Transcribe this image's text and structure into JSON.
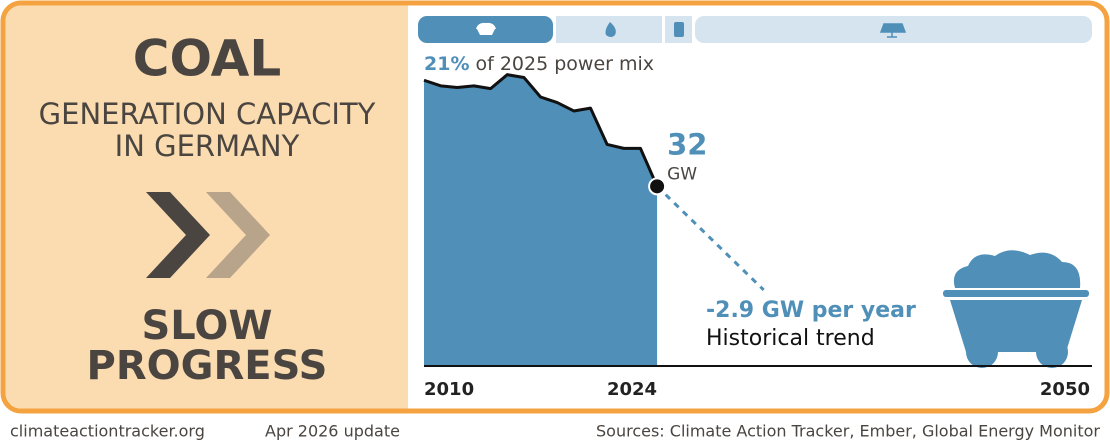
{
  "panel": {
    "title": "COAL",
    "subtitle_lines": [
      "GENERATION CAPACITY",
      "IN GERMANY"
    ],
    "status_lines": [
      "SLOW",
      "PROGRESS"
    ]
  },
  "footer": {
    "site": "climateactiontracker.org",
    "update": "Apr 2026 update",
    "sources": "Sources: Climate Action Tracker, Ember, Global Energy Monitor"
  },
  "chart_data": {
    "type": "area",
    "share": {
      "value": 21,
      "label": "21%"
    },
    "share_text": "of 2025 power mix",
    "x": [
      2010,
      2011,
      2012,
      2013,
      2014,
      2015,
      2016,
      2017,
      2018,
      2019,
      2020,
      2021,
      2022,
      2023,
      2024
    ],
    "values": [
      51,
      50,
      49.7,
      50,
      49.5,
      52,
      51.5,
      48,
      47,
      45.5,
      46,
      39.5,
      38.8,
      38.8,
      32
    ],
    "unit": "GW",
    "trend": {
      "value": -2.9,
      "label": "-2.9 GW per year",
      "caption": "Historical trend"
    },
    "color": "#4f8fb8",
    "xlim": [
      2010,
      2050
    ],
    "xticks": [
      2010,
      2024,
      2050
    ],
    "ylim": [
      0,
      60
    ]
  }
}
